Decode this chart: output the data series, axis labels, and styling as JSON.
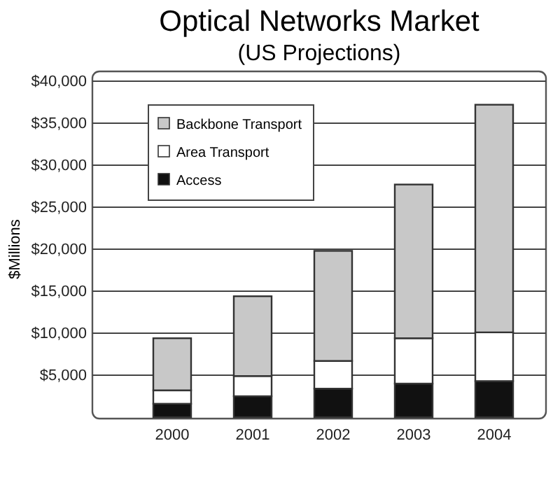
{
  "chart_data": {
    "type": "bar",
    "title": "Optical Networks Market",
    "subtitle": "(US Projections)",
    "ylabel": "$Millions",
    "categories": [
      "2000",
      "2001",
      "2002",
      "2003",
      "2004"
    ],
    "stacked": true,
    "series": [
      {
        "name": "Access",
        "color": "#111111",
        "values": [
          1600,
          2500,
          3400,
          4000,
          4300
        ]
      },
      {
        "name": "Area Transport",
        "color": "#ffffff",
        "values": [
          1600,
          2400,
          3300,
          5400,
          5800
        ]
      },
      {
        "name": "Backbone Transport",
        "color": "#c8c8c8",
        "values": [
          6200,
          9500,
          13100,
          18300,
          27100
        ]
      }
    ],
    "ylim": [
      0,
      40000
    ],
    "yticks": [
      {
        "value": 5000,
        "label": "$5,000"
      },
      {
        "value": 10000,
        "label": "$10,000"
      },
      {
        "value": 15000,
        "label": "$15,000"
      },
      {
        "value": 20000,
        "label": "$20,000"
      },
      {
        "value": 25000,
        "label": "$25,000"
      },
      {
        "value": 30000,
        "label": "$30,000"
      },
      {
        "value": 35000,
        "label": "$35,000"
      },
      {
        "value": 40000,
        "label": "$40,000"
      }
    ],
    "grid": "y",
    "legend": "top left"
  }
}
